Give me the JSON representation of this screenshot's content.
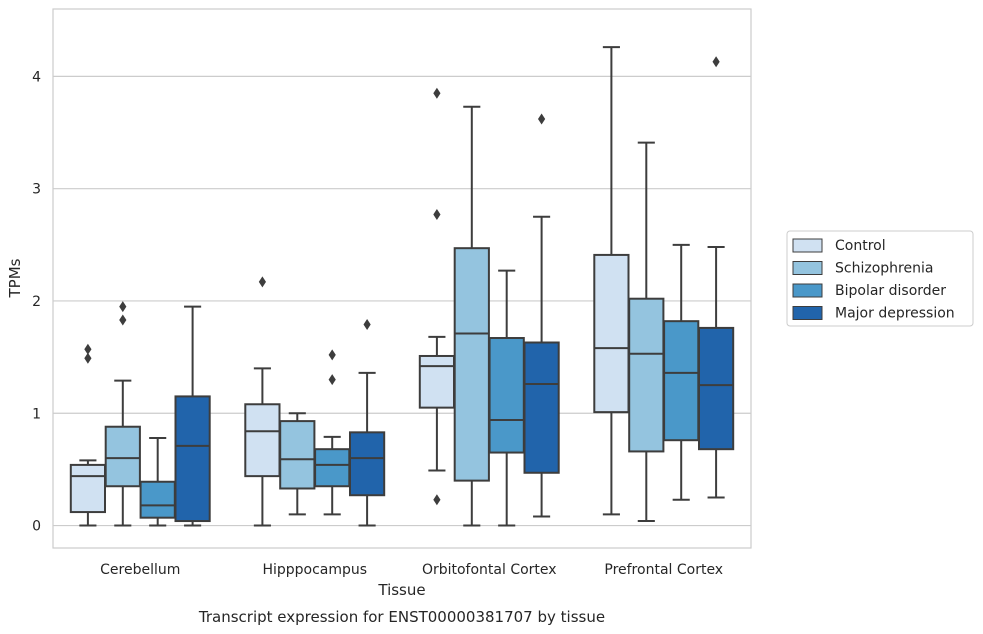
{
  "chart_data": {
    "type": "box",
    "xlabel": "Tissue",
    "ylabel": "TPMs",
    "caption": "Transcript expression for ENST00000381707 by tissue",
    "ylim": [
      -0.2,
      4.6
    ],
    "yticks": [
      0,
      1,
      2,
      3,
      4
    ],
    "grid": "horizontal",
    "legend_position": "right",
    "categories": [
      "Cerebellum",
      "Hipppocampus",
      "Orbitofontal Cortex",
      "Prefrontal Cortex"
    ],
    "series": [
      {
        "name": "Control",
        "color": "#d0e1f2",
        "boxes": [
          {
            "whislo": 0.0,
            "q1": 0.12,
            "med": 0.44,
            "q3": 0.54,
            "whishi": 0.58,
            "fliers": [
              1.49,
              1.57
            ]
          },
          {
            "whislo": 0.0,
            "q1": 0.44,
            "med": 0.84,
            "q3": 1.08,
            "whishi": 1.4,
            "fliers": [
              2.17
            ]
          },
          {
            "whislo": 0.49,
            "q1": 1.05,
            "med": 1.42,
            "q3": 1.51,
            "whishi": 1.68,
            "fliers": [
              0.23,
              2.77,
              3.85
            ]
          },
          {
            "whislo": 0.1,
            "q1": 1.01,
            "med": 1.58,
            "q3": 2.41,
            "whishi": 4.26,
            "fliers": []
          }
        ]
      },
      {
        "name": "Schizophrenia",
        "color": "#94c4df",
        "boxes": [
          {
            "whislo": 0.0,
            "q1": 0.35,
            "med": 0.6,
            "q3": 0.88,
            "whishi": 1.29,
            "fliers": [
              1.83,
              1.95
            ]
          },
          {
            "whislo": 0.1,
            "q1": 0.33,
            "med": 0.59,
            "q3": 0.93,
            "whishi": 1.0,
            "fliers": []
          },
          {
            "whislo": 0.0,
            "q1": 0.4,
            "med": 1.71,
            "q3": 2.47,
            "whishi": 3.73,
            "fliers": []
          },
          {
            "whislo": 0.04,
            "q1": 0.66,
            "med": 1.53,
            "q3": 2.02,
            "whishi": 3.41,
            "fliers": []
          }
        ]
      },
      {
        "name": "Bipolar disorder",
        "color": "#4a98c9",
        "boxes": [
          {
            "whislo": 0.0,
            "q1": 0.07,
            "med": 0.18,
            "q3": 0.39,
            "whishi": 0.78,
            "fliers": []
          },
          {
            "whislo": 0.1,
            "q1": 0.35,
            "med": 0.54,
            "q3": 0.68,
            "whishi": 0.79,
            "fliers": [
              1.3,
              1.52
            ]
          },
          {
            "whislo": 0.0,
            "q1": 0.65,
            "med": 0.94,
            "q3": 1.67,
            "whishi": 2.27,
            "fliers": []
          },
          {
            "whislo": 0.23,
            "q1": 0.76,
            "med": 1.36,
            "q3": 1.82,
            "whishi": 2.5,
            "fliers": []
          }
        ]
      },
      {
        "name": "Major depression",
        "color": "#2164ab",
        "boxes": [
          {
            "whislo": 0.0,
            "q1": 0.04,
            "med": 0.71,
            "q3": 1.15,
            "whishi": 1.95,
            "fliers": []
          },
          {
            "whislo": 0.0,
            "q1": 0.27,
            "med": 0.6,
            "q3": 0.83,
            "whishi": 1.36,
            "fliers": [
              1.79
            ]
          },
          {
            "whislo": 0.08,
            "q1": 0.47,
            "med": 1.26,
            "q3": 1.63,
            "whishi": 2.75,
            "fliers": [
              3.62
            ]
          },
          {
            "whislo": 0.25,
            "q1": 0.68,
            "med": 1.25,
            "q3": 1.76,
            "whishi": 2.48,
            "fliers": [
              4.13
            ]
          }
        ]
      }
    ]
  }
}
